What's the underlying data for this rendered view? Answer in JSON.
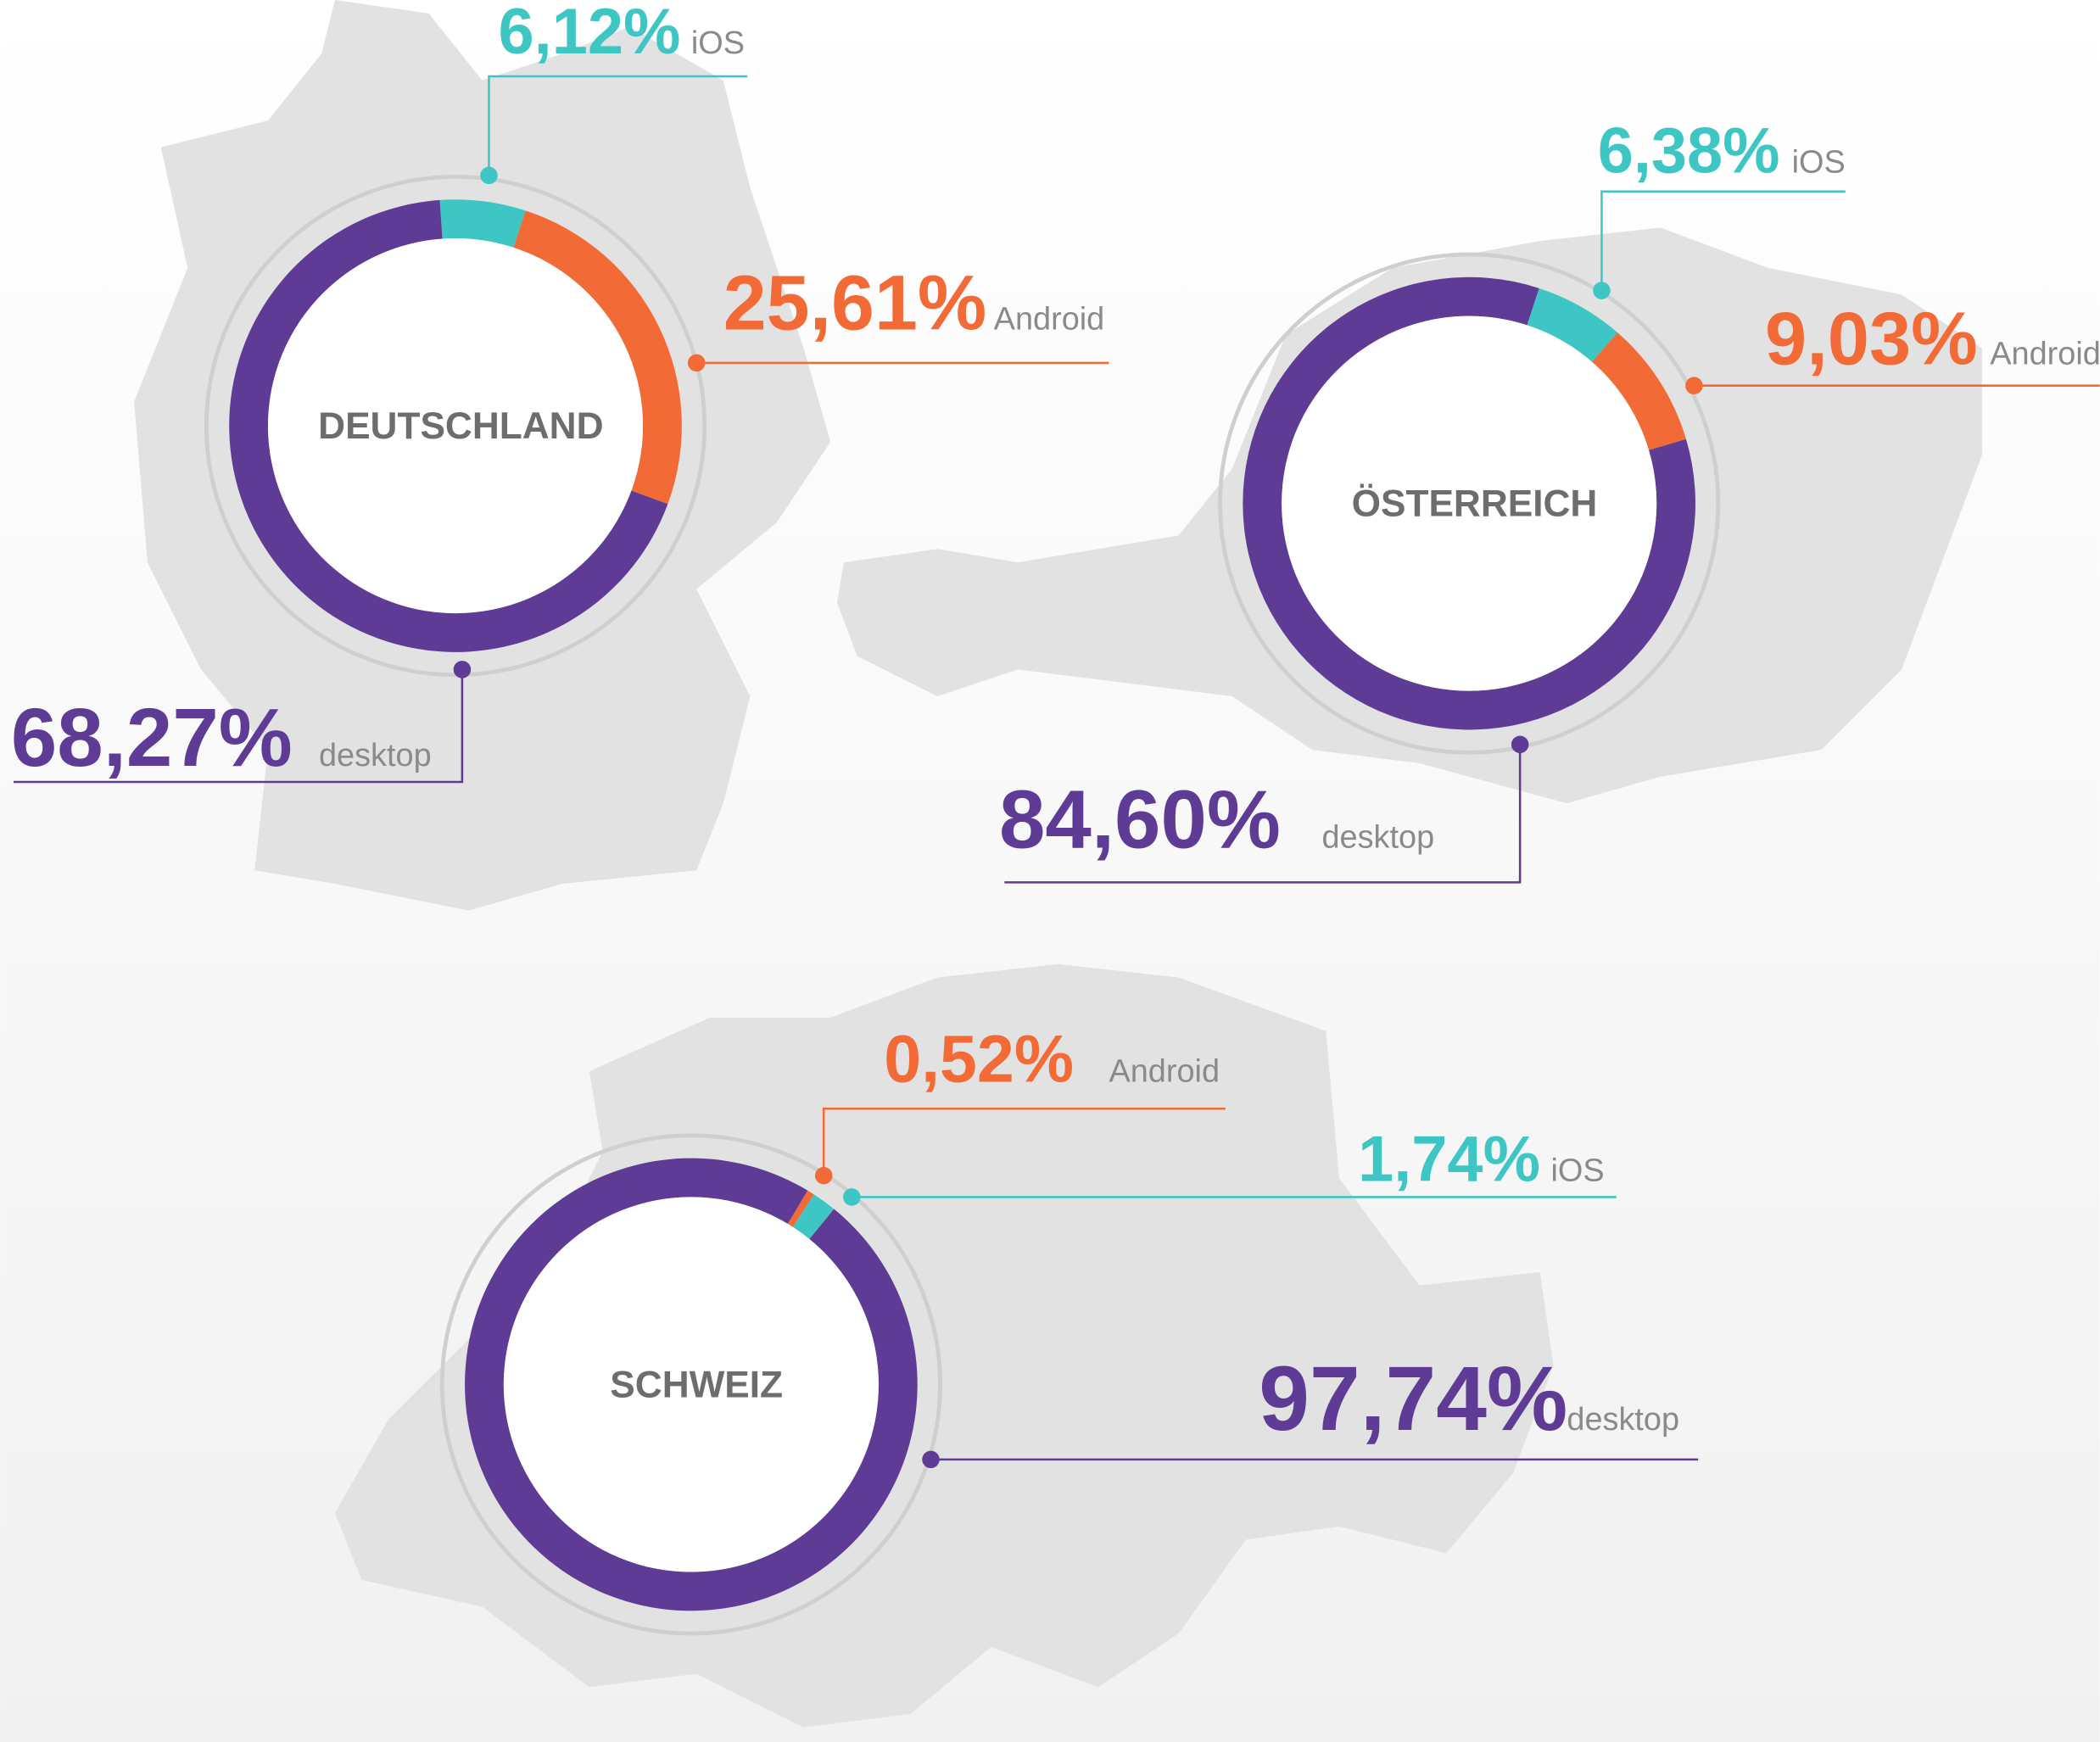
{
  "chart_data": [
    {
      "type": "donut",
      "title": "DEUTSCHLAND",
      "categories": [
        "iOS",
        "Android",
        "desktop"
      ],
      "values": [
        6.12,
        25.61,
        68.27
      ],
      "value_labels": [
        "6,12%",
        "25,61%",
        "68,27%"
      ],
      "colors": [
        "#3ec6c4",
        "#f26a36",
        "#5e3b94"
      ]
    },
    {
      "type": "donut",
      "title": "ÖSTERREICH",
      "categories": [
        "iOS",
        "Android",
        "desktop"
      ],
      "values": [
        6.38,
        9.03,
        84.6
      ],
      "value_labels": [
        "6,38%",
        "9,03%",
        "84,60%"
      ],
      "colors": [
        "#3ec6c4",
        "#f26a36",
        "#5e3b94"
      ]
    },
    {
      "type": "donut",
      "title": "SCHWEIZ",
      "categories": [
        "Android",
        "iOS",
        "desktop"
      ],
      "values": [
        0.52,
        1.74,
        97.74
      ],
      "value_labels": [
        "0,52%",
        "1,74%",
        "97,74%"
      ],
      "colors": [
        "#f26a36",
        "#3ec6c4",
        "#5e3b94"
      ]
    }
  ]
}
